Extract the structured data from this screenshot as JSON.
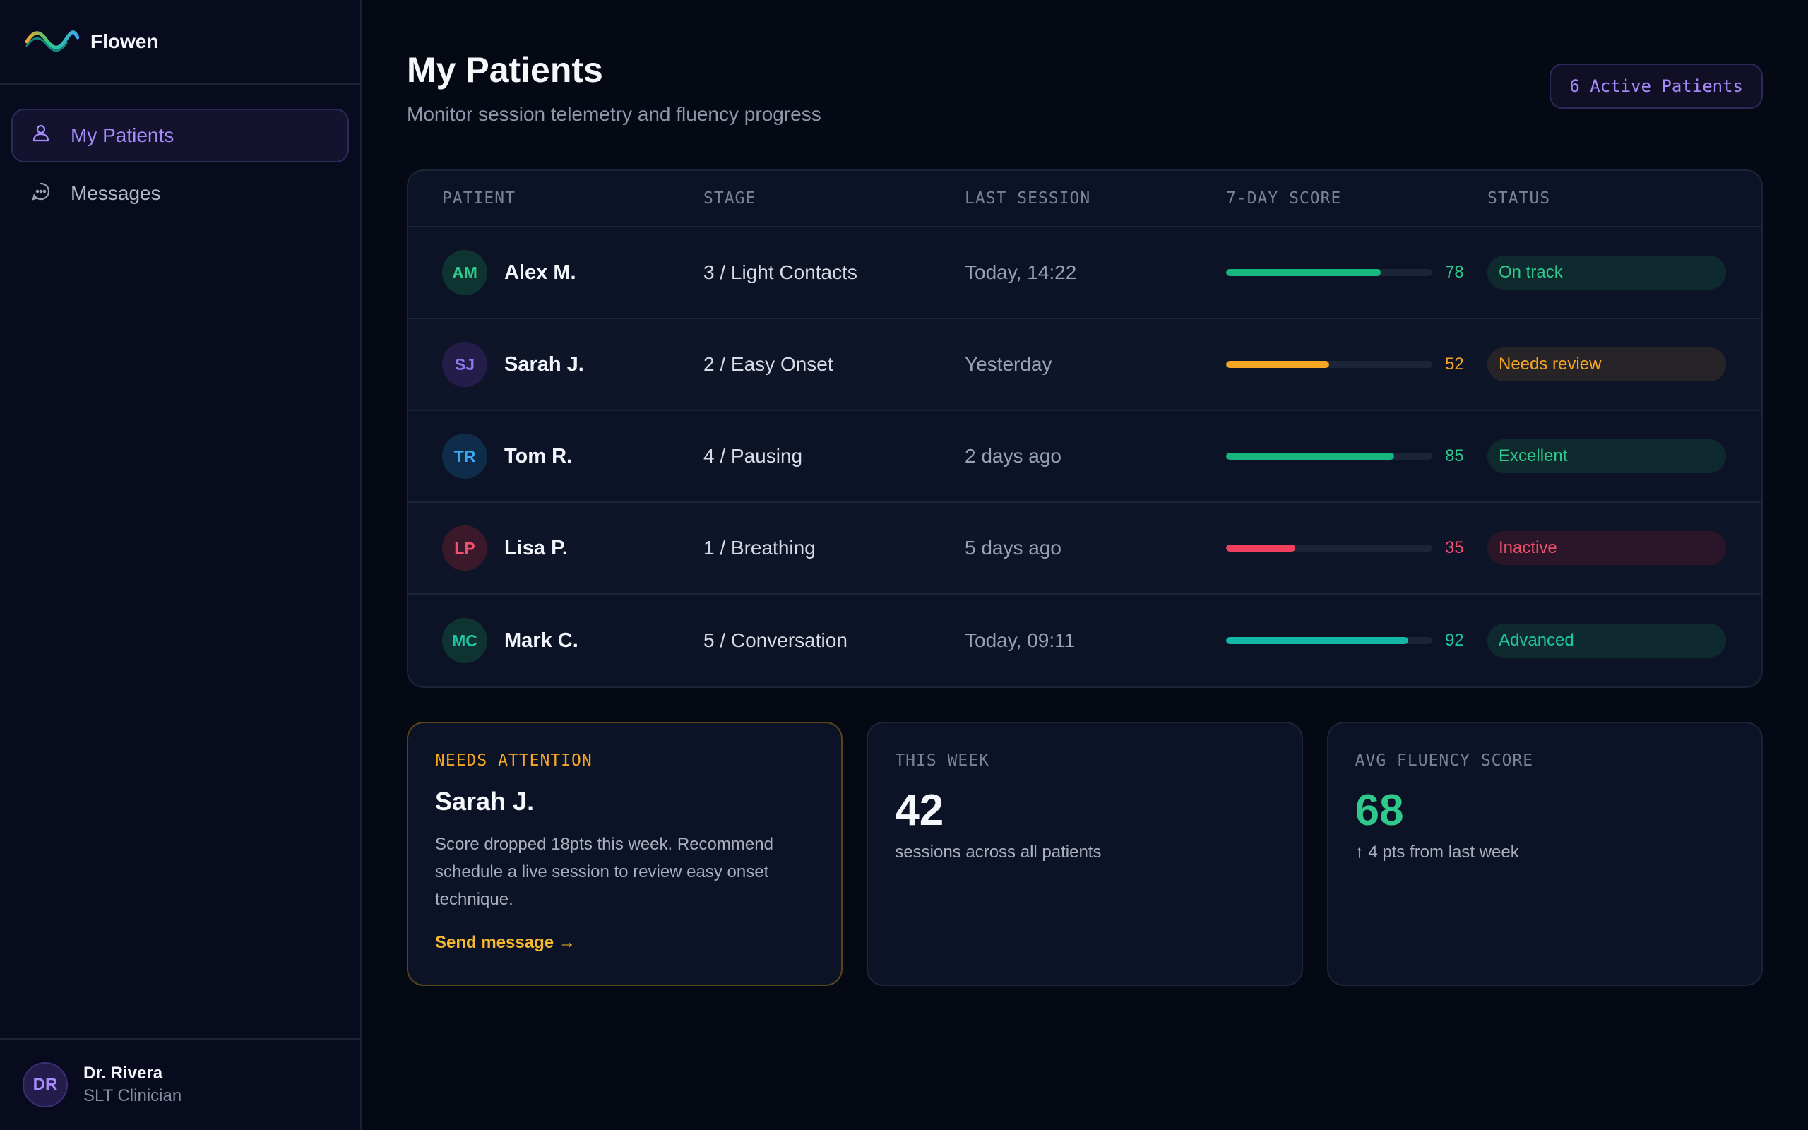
{
  "brand": {
    "name": "Flowen",
    "logo_icon": "wave-logo-icon"
  },
  "nav": {
    "items": [
      {
        "label": "My Patients",
        "icon": "users-icon",
        "active": true
      },
      {
        "label": "Messages",
        "icon": "message-icon",
        "active": false
      }
    ]
  },
  "user": {
    "initials": "DR",
    "name": "Dr. Rivera",
    "role": "SLT Clinician"
  },
  "header": {
    "title": "My Patients",
    "subtitle": "Monitor session telemetry and fluency progress",
    "badge": "6 Active Patients"
  },
  "table": {
    "columns": [
      "PATIENT",
      "STAGE",
      "LAST SESSION",
      "7-DAY SCORE",
      "STATUS"
    ],
    "rows": [
      {
        "initials": "AM",
        "name": "Alex M.",
        "stage": "3 / Light Contacts",
        "last_session": "Today, 14:22",
        "score": 78,
        "status": "On track",
        "colors": {
          "avatar_bg": "#0f3330",
          "avatar_fg": "#2ec98b",
          "bar": "#17b67f",
          "num": "#2ec98b",
          "status_bg": "#0f2a2e",
          "status_fg": "#2ec98b"
        }
      },
      {
        "initials": "SJ",
        "name": "Sarah J.",
        "stage": "2 / Easy Onset",
        "last_session": "Yesterday",
        "score": 52,
        "status": "Needs review",
        "colors": {
          "avatar_bg": "#241d49",
          "avatar_fg": "#8b7bf0",
          "bar": "#f5a623",
          "num": "#f5a623",
          "status_bg": "#262426",
          "status_fg": "#f5a623"
        }
      },
      {
        "initials": "TR",
        "name": "Tom R.",
        "stage": "4 / Pausing",
        "last_session": "2 days ago",
        "score": 85,
        "status": "Excellent",
        "colors": {
          "avatar_bg": "#0f2d4a",
          "avatar_fg": "#3fa6f0",
          "bar": "#17b67f",
          "num": "#2ec98b",
          "status_bg": "#0f2a2e",
          "status_fg": "#2ec98b"
        }
      },
      {
        "initials": "LP",
        "name": "Lisa P.",
        "stage": "1 / Breathing",
        "last_session": "5 days ago",
        "score": 35,
        "status": "Inactive",
        "colors": {
          "avatar_bg": "#3a1a2a",
          "avatar_fg": "#f0506e",
          "bar": "#f0405e",
          "num": "#f0506e",
          "status_bg": "#2a1628",
          "status_fg": "#f0506e"
        }
      },
      {
        "initials": "MC",
        "name": "Mark C.",
        "stage": "5 / Conversation",
        "last_session": "Today, 09:11",
        "score": 92,
        "status": "Advanced",
        "colors": {
          "avatar_bg": "#0f3330",
          "avatar_fg": "#20c4a4",
          "bar": "#14b8a6",
          "num": "#20c4a4",
          "status_bg": "#0f2a2e",
          "status_fg": "#20c4a4"
        }
      }
    ]
  },
  "cards": {
    "attention": {
      "label": "NEEDS ATTENTION",
      "title": "Sarah J.",
      "body": "Score dropped 18pts this week. Recommend schedule a live session to review easy onset technique.",
      "link": "Send message →"
    },
    "week": {
      "label": "THIS WEEK",
      "value": "42",
      "sub": "sessions across all patients"
    },
    "avg": {
      "label": "AVG FLUENCY SCORE",
      "value": "68",
      "sub": "↑ 4 pts from last week",
      "accent": "#2ec98b"
    }
  }
}
